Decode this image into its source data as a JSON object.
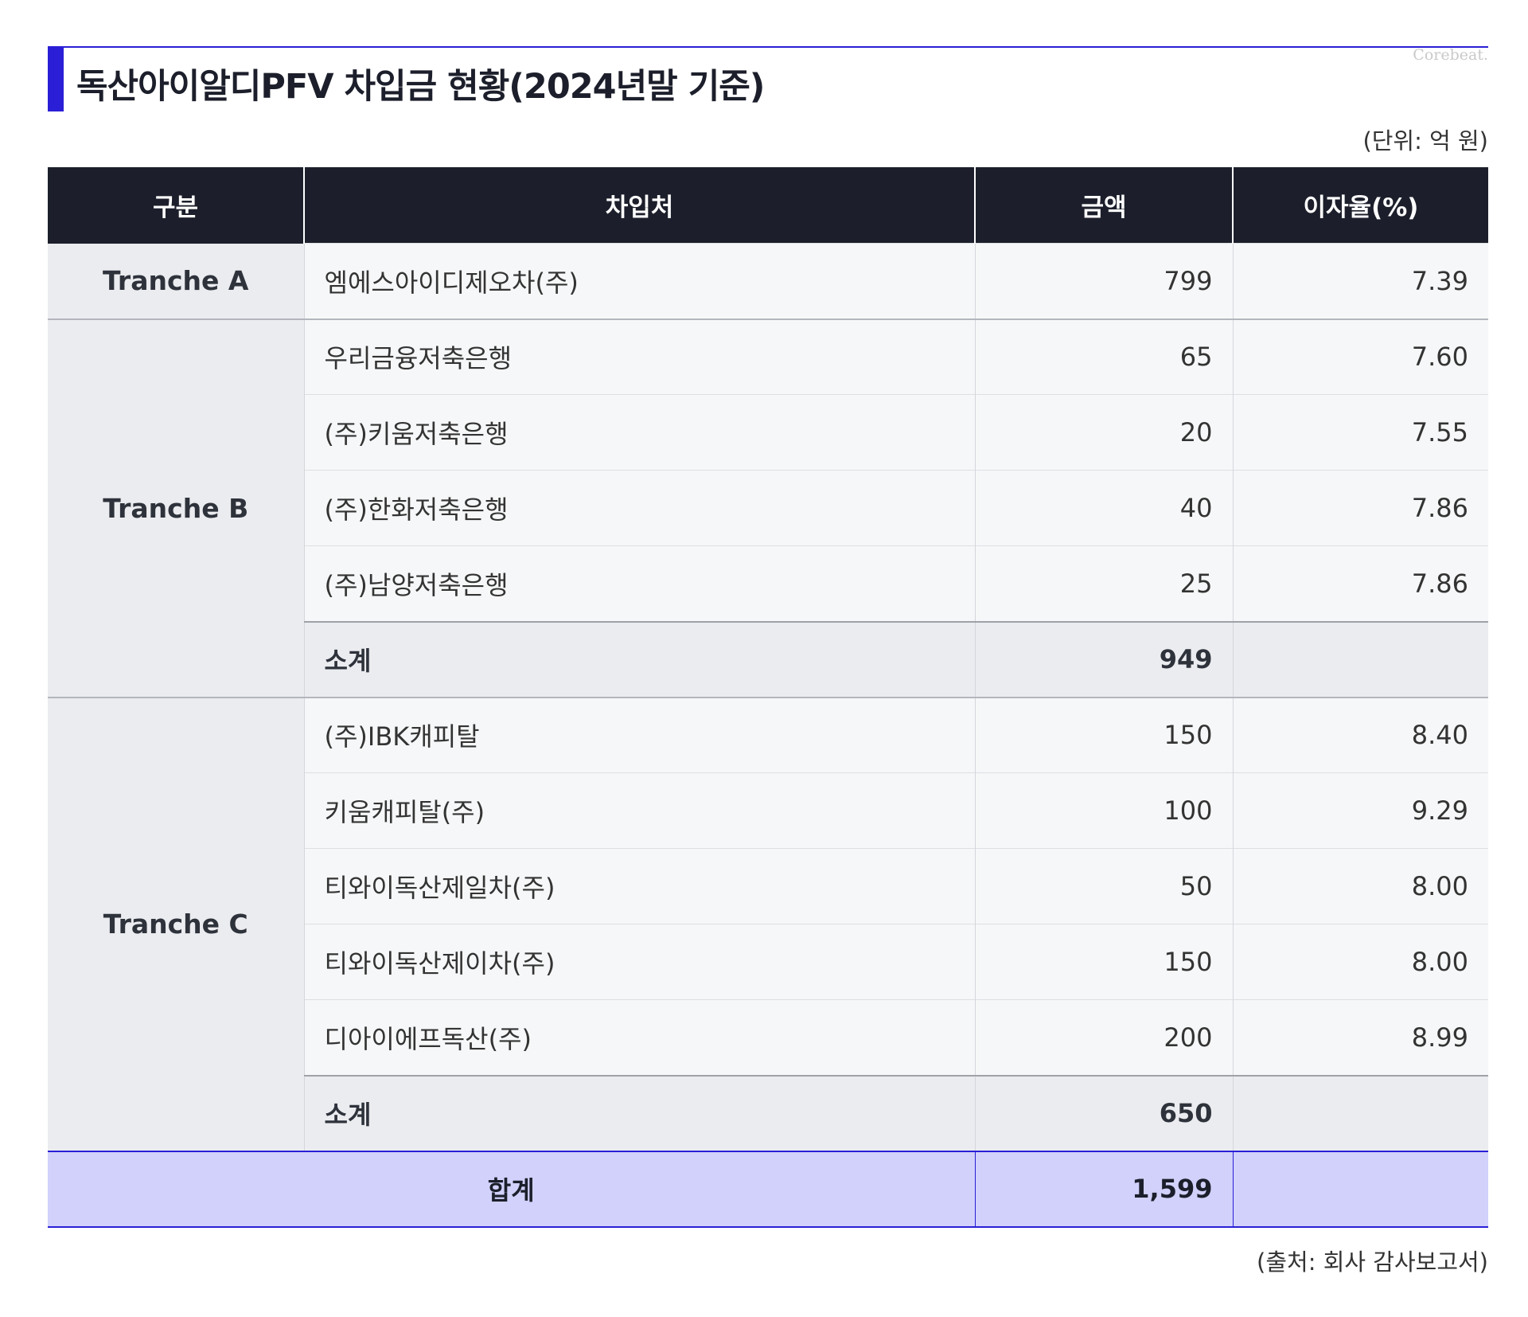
{
  "title": "독산아이알디PFV 차입금 현황(2024년말 기준)",
  "logo": "Corebeat.",
  "unit": "(단위: 억 원)",
  "source": "(출처: 회사 감사보고서)",
  "colors": {
    "accent": "#2a1fd6",
    "header_bg": "#1c1f2b",
    "total_bg": "#d1d1fb",
    "group_bg": "#ebecef",
    "row_bg": "#f6f7f8"
  },
  "table": {
    "headers": [
      "구분",
      "차입처",
      "금액",
      "이자율(%)"
    ],
    "tranche_a": {
      "label": "Tranche A",
      "rows": [
        {
          "lender": "엠에스아이디제오차(주)",
          "amount": "799",
          "rate": "7.39"
        }
      ]
    },
    "tranche_b": {
      "label": "Tranche B",
      "rows": [
        {
          "lender": "우리금융저축은행",
          "amount": "65",
          "rate": "7.60"
        },
        {
          "lender": "(주)키움저축은행",
          "amount": "20",
          "rate": "7.55"
        },
        {
          "lender": "(주)한화저축은행",
          "amount": "40",
          "rate": "7.86"
        },
        {
          "lender": "(주)남양저축은행",
          "amount": "25",
          "rate": "7.86"
        }
      ],
      "subtotal_label": "소계",
      "subtotal_amount": "949"
    },
    "tranche_c": {
      "label": "Tranche C",
      "rows": [
        {
          "lender": "(주)IBK캐피탈",
          "amount": "150",
          "rate": "8.40"
        },
        {
          "lender": "키움캐피탈(주)",
          "amount": "100",
          "rate": "9.29"
        },
        {
          "lender": "티와이독산제일차(주)",
          "amount": "50",
          "rate": "8.00"
        },
        {
          "lender": "티와이독산제이차(주)",
          "amount": "150",
          "rate": "8.00"
        },
        {
          "lender": "디아이에프독산(주)",
          "amount": "200",
          "rate": "8.99"
        }
      ],
      "subtotal_label": "소계",
      "subtotal_amount": "650"
    },
    "total": {
      "label": "합계",
      "amount": "1,599"
    }
  }
}
